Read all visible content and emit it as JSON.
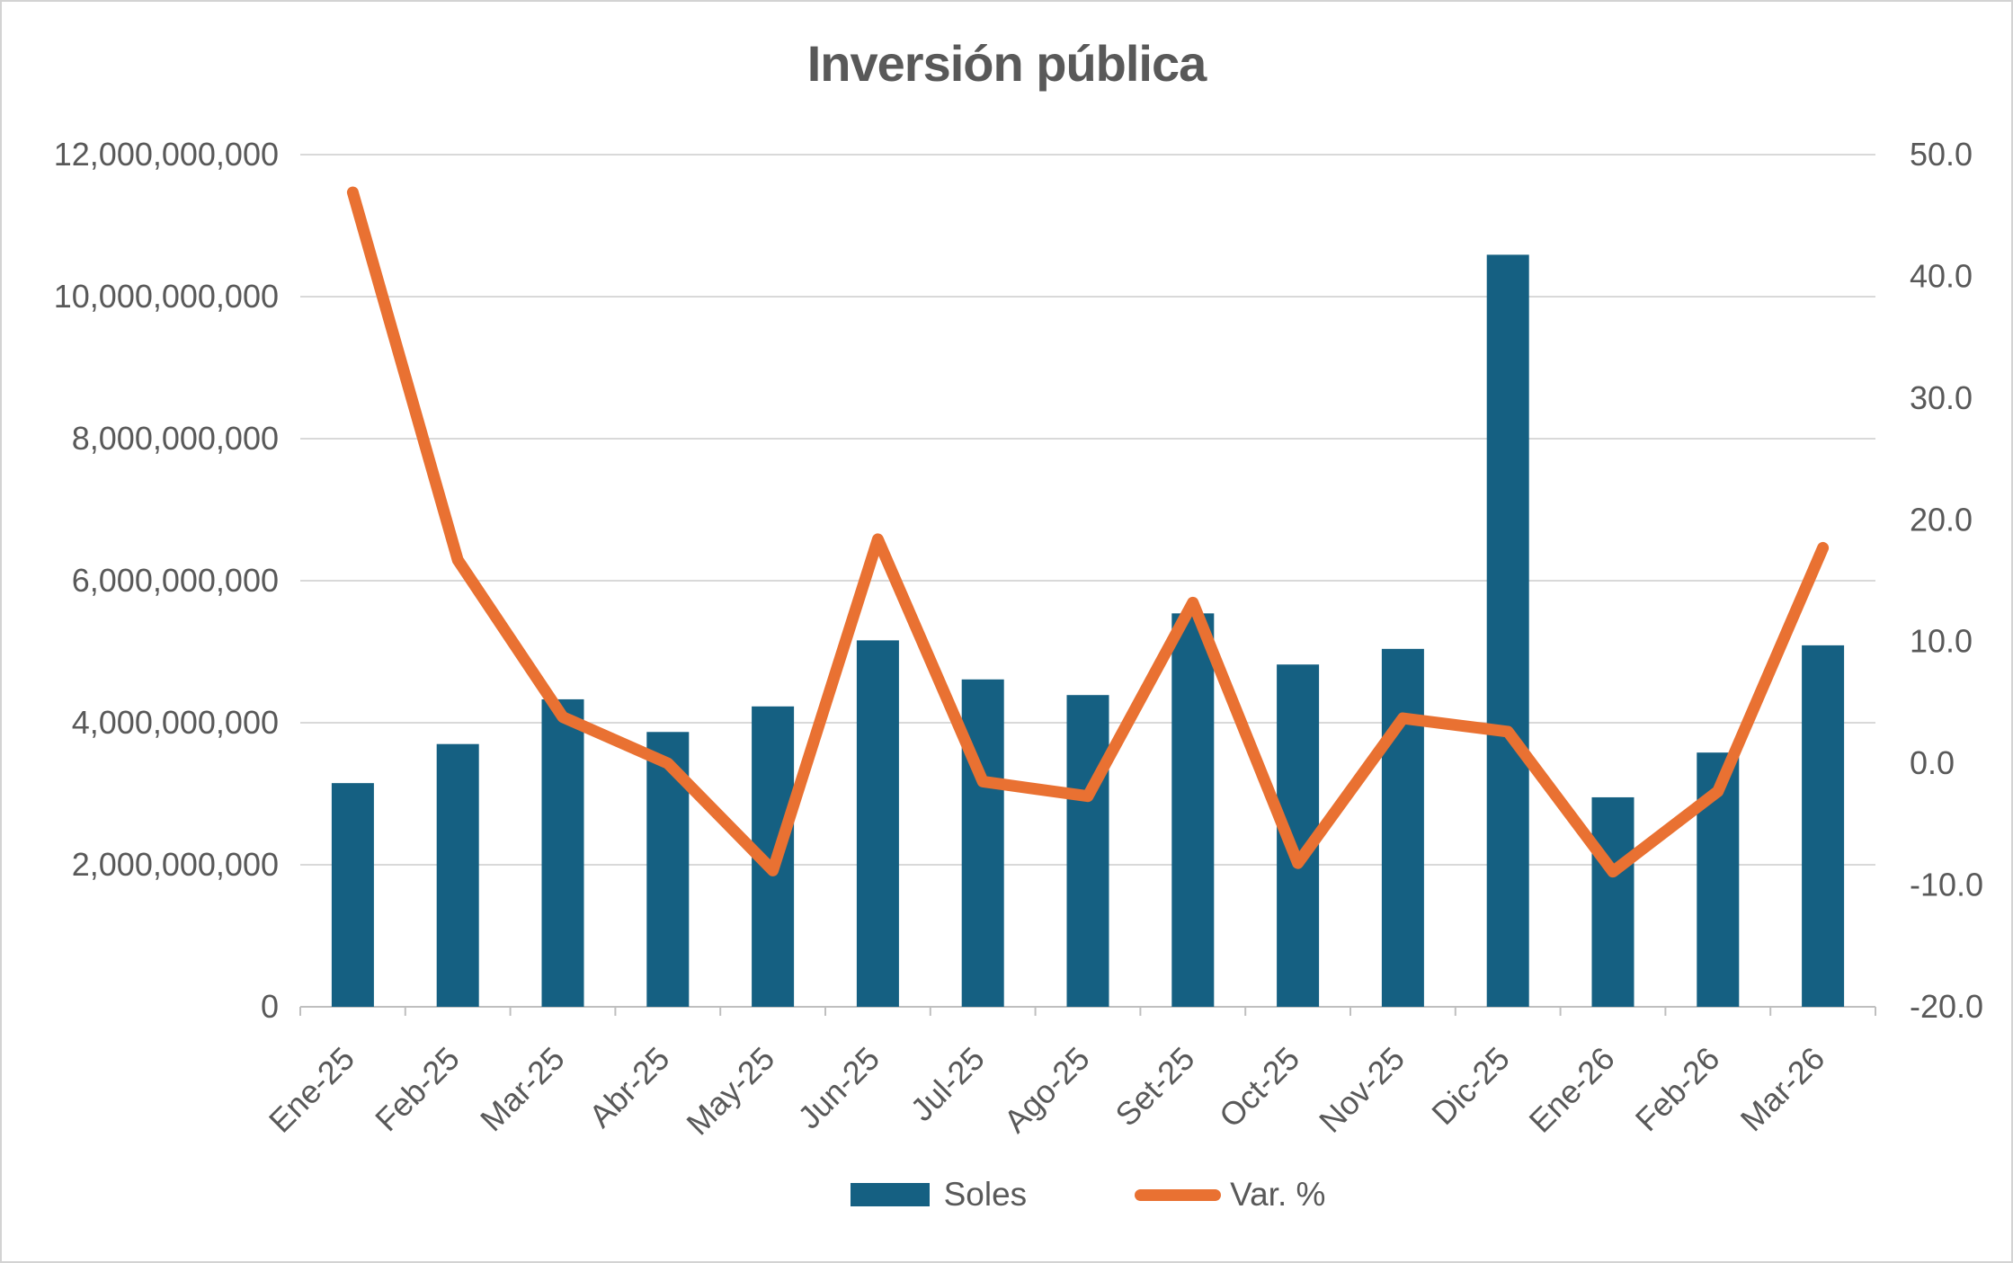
{
  "chart_data": {
    "type": "combo",
    "title": "Inversión pública",
    "categories": [
      "Ene-25",
      "Feb-25",
      "Mar-25",
      "Abr-25",
      "May-25",
      "Jun-25",
      "Jul-25",
      "Ago-25",
      "Set-25",
      "Oct-25",
      "Nov-25",
      "Dic-25",
      "Ene-26",
      "Feb-26",
      "Mar-26"
    ],
    "series": [
      {
        "name": "Soles",
        "type": "bar",
        "axis": "left",
        "color": "#156082",
        "values": [
          3150000000,
          3700000000,
          4330000000,
          3870000000,
          4230000000,
          5160000000,
          4610000000,
          4390000000,
          5540000000,
          4820000000,
          5040000000,
          10590000000,
          2950000000,
          3580000000,
          5090000000
        ]
      },
      {
        "name": "Var. %",
        "type": "line",
        "axis": "right",
        "color": "#E97132",
        "values": [
          46.9,
          16.7,
          3.8,
          0.0,
          -8.8,
          18.4,
          -1.5,
          -2.7,
          13.2,
          -8.2,
          3.7,
          2.6,
          -8.9,
          -2.3,
          17.7
        ]
      }
    ],
    "left_axis": {
      "min": 0,
      "max": 12000000000,
      "step": 2000000000,
      "tick_labels": [
        "0",
        "2,000,000,000",
        "4,000,000,000",
        "6,000,000,000",
        "8,000,000,000",
        "10,000,000,000",
        "12,000,000,000"
      ]
    },
    "right_axis": {
      "min": -20,
      "max": 50,
      "step": 10,
      "tick_labels": [
        "-20.0",
        "-10.0",
        "0.0",
        "10.0",
        "20.0",
        "30.0",
        "40.0",
        "50.0"
      ]
    },
    "grid": true,
    "legend_position": "bottom",
    "colors": {
      "bar": "#156082",
      "line": "#E97132",
      "text": "#595959",
      "gridline": "#D9D9D9",
      "axis_line": "#BFBFBF",
      "border": "#D3D3D3",
      "background": "#FFFFFF"
    }
  }
}
